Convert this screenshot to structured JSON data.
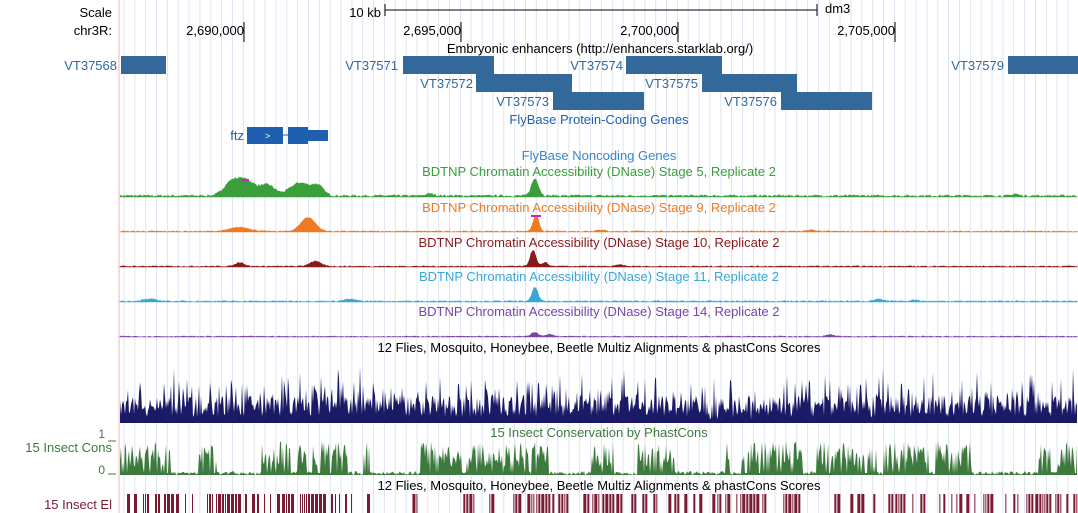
{
  "ruler": {
    "scale_label": "Scale",
    "scale_value": "10 kb",
    "assembly": "dm3",
    "chrom_label": "chr3R:",
    "ticks": [
      "2,690,000",
      "2,695,000",
      "2,700,000",
      "2,705,000"
    ]
  },
  "enhancers": {
    "title": "Embryonic enhancers (http://enhancers.starklab.org/)",
    "color": "#33689a",
    "items": [
      "VT37568",
      "VT37571",
      "VT37572",
      "VT37573",
      "VT37574",
      "VT37575",
      "VT37576",
      "VT37579"
    ]
  },
  "genes": {
    "title": "FlyBase Protein-Coding Genes",
    "color": "#1f5fb0",
    "gene_name": "ftz"
  },
  "noncoding": {
    "title": "FlyBase Noncoding Genes",
    "color": "#3a86c8"
  },
  "dnase_tracks": [
    {
      "title": "BDTNP Chromatin Accessibility (DNase) Stage 5, Replicate 2",
      "color": "#3a9e3a"
    },
    {
      "title": "BDTNP Chromatin Accessibility (DNase) Stage 9, Replicate 2",
      "color": "#ee7a22"
    },
    {
      "title": "BDTNP Chromatin Accessibility (DNase) Stage 10, Replicate 2",
      "color": "#8a1a1a"
    },
    {
      "title": "BDTNP Chromatin Accessibility (DNase) Stage 11, Replicate 2",
      "color": "#3aa6d6"
    },
    {
      "title": "BDTNP Chromatin Accessibility (DNase) Stage 14, Replicate 2",
      "color": "#7a44a8"
    }
  ],
  "multiz": {
    "title": "12 Flies, Mosquito, Honeybee, Beetle Multiz Alignments & phastCons Scores",
    "color": "#1a1a66"
  },
  "cons": {
    "left_label": "15 Insect Cons",
    "title": "15 Insect Conservation by PhastCons",
    "axis_max": "1",
    "axis_min": "0",
    "color": "#3d7a3d"
  },
  "elements": {
    "left_label": "15 Insect El",
    "title": "12 Flies, Mosquito, Honeybee, Beetle Multiz Alignments & phastCons Scores",
    "color": "#7a1a33"
  }
}
